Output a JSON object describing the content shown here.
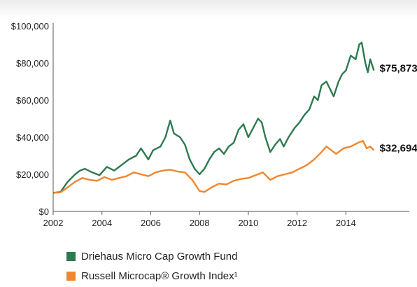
{
  "chart_data": {
    "type": "line",
    "title": "",
    "xlabel": "",
    "ylabel": "",
    "xlim": [
      2002,
      2016.6
    ],
    "ylim": [
      0,
      100000
    ],
    "x_ticks": [
      "2002",
      "2004",
      "2006",
      "2008",
      "2010",
      "2012",
      "2014"
    ],
    "y_ticks": [
      "$0",
      "$20,000",
      "$40,000",
      "$60,000",
      "$80,000",
      "$100,000"
    ],
    "grid": false,
    "legend_position": "bottom-left",
    "series": [
      {
        "name": "Driehaus Micro Cap Growth Fund",
        "color": "#2d7a4f",
        "end_label": "$75,873",
        "points": [
          [
            2002.0,
            10000
          ],
          [
            2002.3,
            10500
          ],
          [
            2002.6,
            16000
          ],
          [
            2002.9,
            20000
          ],
          [
            2003.1,
            22000
          ],
          [
            2003.3,
            23000
          ],
          [
            2003.6,
            21000
          ],
          [
            2003.9,
            19500
          ],
          [
            2004.2,
            24000
          ],
          [
            2004.5,
            22000
          ],
          [
            2004.8,
            25000
          ],
          [
            2005.1,
            28000
          ],
          [
            2005.4,
            30000
          ],
          [
            2005.6,
            34000
          ],
          [
            2005.9,
            28000
          ],
          [
            2006.1,
            33000
          ],
          [
            2006.4,
            35000
          ],
          [
            2006.6,
            40000
          ],
          [
            2006.8,
            49000
          ],
          [
            2006.95,
            42000
          ],
          [
            2007.2,
            40000
          ],
          [
            2007.4,
            36000
          ],
          [
            2007.6,
            28000
          ],
          [
            2007.8,
            23000
          ],
          [
            2008.0,
            20000
          ],
          [
            2008.2,
            23000
          ],
          [
            2008.4,
            28000
          ],
          [
            2008.6,
            32000
          ],
          [
            2008.8,
            34000
          ],
          [
            2009.0,
            31000
          ],
          [
            2009.2,
            35000
          ],
          [
            2009.4,
            37000
          ],
          [
            2009.6,
            44000
          ],
          [
            2009.8,
            47000
          ],
          [
            2010.0,
            40000
          ],
          [
            2010.2,
            45000
          ],
          [
            2010.4,
            50000
          ],
          [
            2010.55,
            48000
          ],
          [
            2010.7,
            40000
          ],
          [
            2010.9,
            32000
          ],
          [
            2011.1,
            36000
          ],
          [
            2011.3,
            39000
          ],
          [
            2011.45,
            35000
          ],
          [
            2011.65,
            40000
          ],
          [
            2011.9,
            45000
          ],
          [
            2012.1,
            48000
          ],
          [
            2012.3,
            52000
          ],
          [
            2012.5,
            55000
          ],
          [
            2012.7,
            62000
          ],
          [
            2012.85,
            60000
          ],
          [
            2013.0,
            68000
          ],
          [
            2013.2,
            70000
          ],
          [
            2013.35,
            66000
          ],
          [
            2013.5,
            62000
          ],
          [
            2013.7,
            70000
          ],
          [
            2013.85,
            74000
          ],
          [
            2014.0,
            76000
          ],
          [
            2014.2,
            84000
          ],
          [
            2014.4,
            82000
          ],
          [
            2014.55,
            90000
          ],
          [
            2014.65,
            91000
          ],
          [
            2014.8,
            80000
          ],
          [
            2014.9,
            75000
          ],
          [
            2015.0,
            82000
          ],
          [
            2015.15,
            76000
          ]
        ]
      },
      {
        "name": "Russell Microcap® Growth Index¹",
        "color": "#f0862e",
        "end_label": "$32,694",
        "points": [
          [
            2002.0,
            10000
          ],
          [
            2002.3,
            10300
          ],
          [
            2002.6,
            13000
          ],
          [
            2002.9,
            16000
          ],
          [
            2003.2,
            18000
          ],
          [
            2003.5,
            17000
          ],
          [
            2003.8,
            16500
          ],
          [
            2004.1,
            18500
          ],
          [
            2004.4,
            17000
          ],
          [
            2004.7,
            18000
          ],
          [
            2005.0,
            19000
          ],
          [
            2005.3,
            21000
          ],
          [
            2005.6,
            20000
          ],
          [
            2005.9,
            19000
          ],
          [
            2006.2,
            21000
          ],
          [
            2006.5,
            22000
          ],
          [
            2006.8,
            22500
          ],
          [
            2007.1,
            21500
          ],
          [
            2007.4,
            21000
          ],
          [
            2007.7,
            17000
          ],
          [
            2008.0,
            11000
          ],
          [
            2008.2,
            10500
          ],
          [
            2008.5,
            13000
          ],
          [
            2008.8,
            15000
          ],
          [
            2009.1,
            14500
          ],
          [
            2009.4,
            16500
          ],
          [
            2009.7,
            17500
          ],
          [
            2010.0,
            18000
          ],
          [
            2010.3,
            19500
          ],
          [
            2010.6,
            21000
          ],
          [
            2010.9,
            17000
          ],
          [
            2011.2,
            19000
          ],
          [
            2011.5,
            20000
          ],
          [
            2011.8,
            21000
          ],
          [
            2012.1,
            23000
          ],
          [
            2012.4,
            25000
          ],
          [
            2012.7,
            28000
          ],
          [
            2013.0,
            32000
          ],
          [
            2013.2,
            35000
          ],
          [
            2013.4,
            33000
          ],
          [
            2013.6,
            31000
          ],
          [
            2013.9,
            34000
          ],
          [
            2014.2,
            35000
          ],
          [
            2014.5,
            37000
          ],
          [
            2014.7,
            38000
          ],
          [
            2014.85,
            34000
          ],
          [
            2015.0,
            35000
          ],
          [
            2015.15,
            33000
          ]
        ]
      }
    ]
  }
}
